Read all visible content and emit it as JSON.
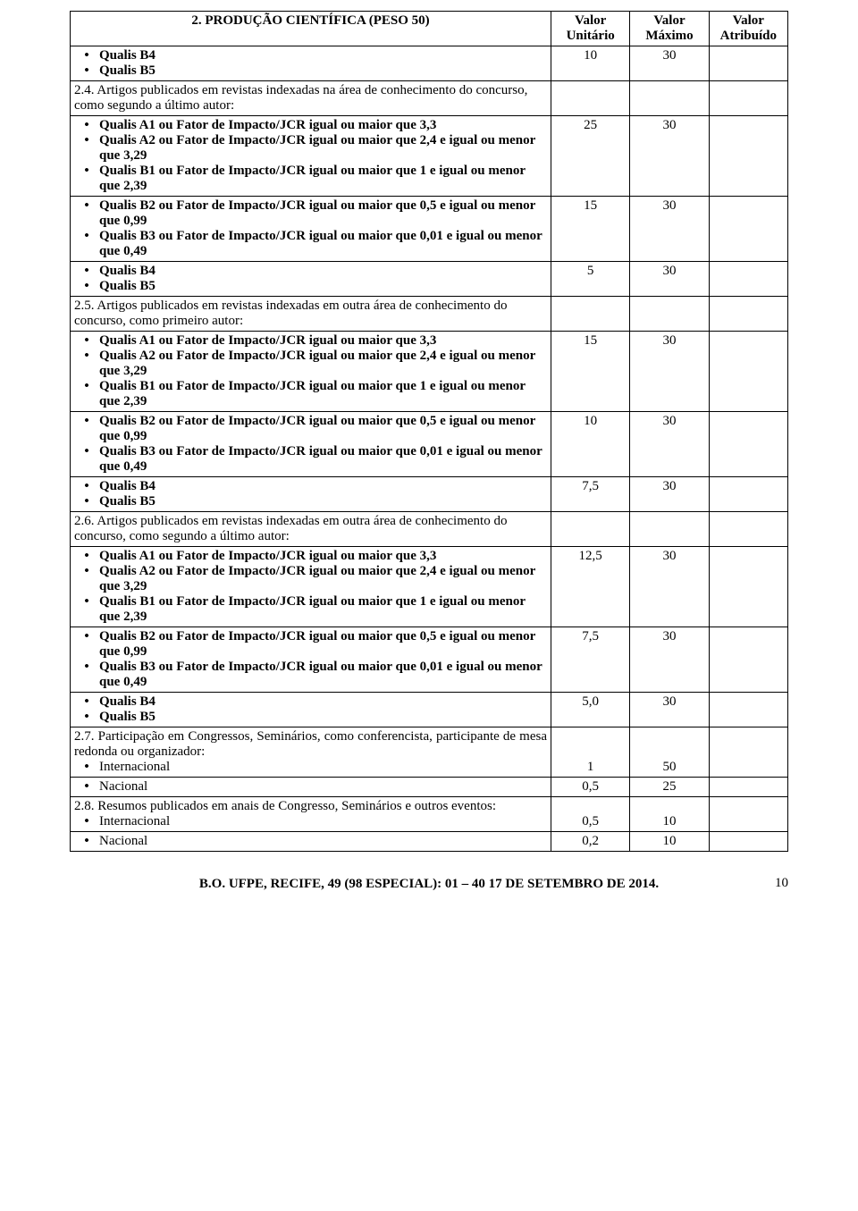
{
  "header": {
    "col1": "2. PRODUÇÃO CIENTÍFICA (PESO 50)",
    "col2a": "Valor",
    "col2b": "Unitário",
    "col3a": "Valor",
    "col3b": "Máximo",
    "col4a": "Valor",
    "col4b": "Atribuído"
  },
  "r1": {
    "b4": "Qualis B4",
    "b5": "Qualis B5",
    "v1": "10",
    "v2": "30"
  },
  "s24": {
    "intro": "2.4. Artigos publicados em revistas indexadas na área de conhecimento do concurso, como segundo a último autor:"
  },
  "g24a": {
    "l1": "Qualis A1 ou Fator de Impacto/JCR igual ou maior que 3,3",
    "l2": "Qualis A2 ou Fator de Impacto/JCR igual ou maior que 2,4 e igual ou menor que 3,29",
    "l3": "Qualis B1 ou Fator de Impacto/JCR igual ou maior que 1 e igual ou menor que 2,39",
    "v1": "25",
    "v2": "30"
  },
  "g24b": {
    "l1": "Qualis B2 ou Fator de Impacto/JCR igual ou maior que 0,5 e igual ou menor que 0,99",
    "l2": "Qualis B3 ou Fator de Impacto/JCR igual ou maior que 0,01 e igual ou menor que 0,49",
    "v1": "15",
    "v2": "30"
  },
  "g24c": {
    "b4": "Qualis B4",
    "b5": "Qualis B5",
    "v1": "5",
    "v2": "30"
  },
  "s25": {
    "intro": "2.5. Artigos publicados em revistas indexadas em outra área de conhecimento do concurso, como primeiro autor:"
  },
  "g25a": {
    "l1": "Qualis A1 ou Fator de Impacto/JCR igual ou maior que 3,3",
    "l2": "Qualis A2 ou Fator de Impacto/JCR igual ou maior que 2,4 e igual ou menor que 3,29",
    "l3": "Qualis B1 ou Fator de Impacto/JCR igual ou maior que 1 e igual ou menor que 2,39",
    "v1": "15",
    "v2": "30"
  },
  "g25b": {
    "l1": "Qualis B2 ou Fator de Impacto/JCR igual ou maior que 0,5 e igual ou menor que 0,99",
    "l2": "Qualis B3 ou Fator de Impacto/JCR igual ou maior que 0,01 e igual ou menor que 0,49",
    "v1": "10",
    "v2": "30"
  },
  "g25c": {
    "b4": "Qualis B4",
    "b5": "Qualis B5",
    "v1": "7,5",
    "v2": "30"
  },
  "s26": {
    "intro": "2.6. Artigos publicados em revistas indexadas em outra área de conhecimento do concurso, como segundo a último autor:"
  },
  "g26a": {
    "l1": "Qualis A1 ou Fator de Impacto/JCR igual ou maior que 3,3",
    "l2": "Qualis A2 ou Fator de Impacto/JCR igual ou maior que 2,4 e igual ou menor que 3,29",
    "l3": "Qualis B1 ou Fator de Impacto/JCR igual ou maior que 1 e igual ou menor que 2,39",
    "v1": "12,5",
    "v2": "30"
  },
  "g26b": {
    "l1": "Qualis B2 ou Fator de Impacto/JCR igual ou maior que 0,5 e igual ou menor que 0,99",
    "l2": "Qualis B3 ou Fator de Impacto/JCR igual ou maior que 0,01 e igual ou menor que 0,49",
    "v1": "7,5",
    "v2": "30"
  },
  "g26c": {
    "b4": "Qualis B4",
    "b5": "Qualis B5",
    "v1": "5,0",
    "v2": "30"
  },
  "s27": {
    "intro": "2.7. Participação em Congressos, Seminários, como conferencista, participante de mesa redonda ou organizador:",
    "intl": "Internacional",
    "intl_v1": "1",
    "intl_v2": "50",
    "nac": "Nacional",
    "nac_v1": "0,5",
    "nac_v2": "25"
  },
  "s28": {
    "intro": "2.8. Resumos publicados em anais de Congresso, Seminários e outros eventos:",
    "intl": "Internacional",
    "intl_v1": "0,5",
    "intl_v2": "10",
    "nac": "Nacional",
    "nac_v1": "0,2",
    "nac_v2": "10"
  },
  "footer": "B.O. UFPE, RECIFE, 49 (98 ESPECIAL): 01 – 40    17 DE SETEMBRO DE 2014.",
  "page": "10"
}
